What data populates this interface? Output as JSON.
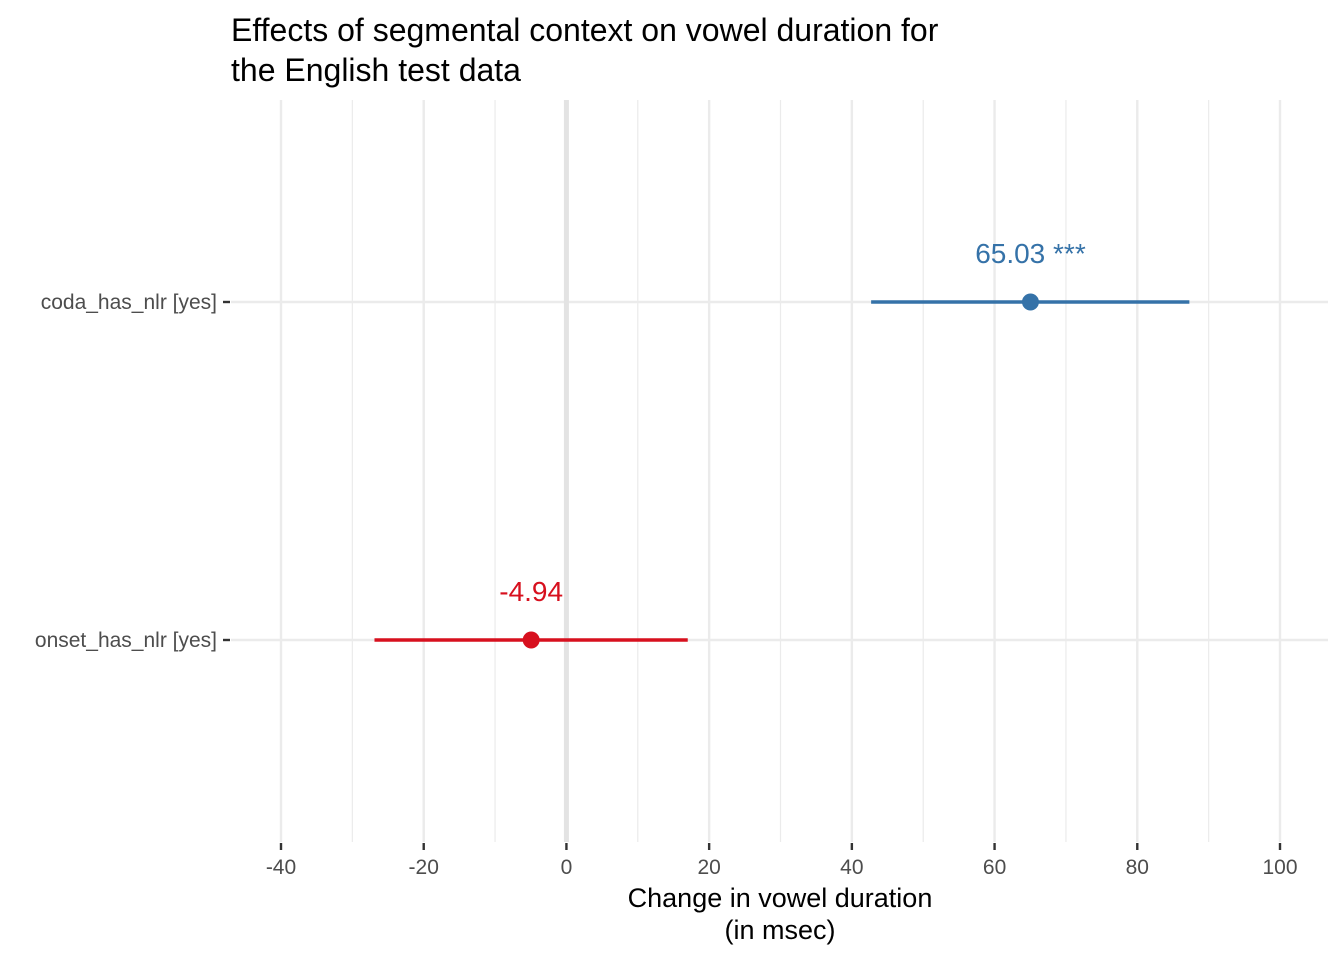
{
  "chart_data": {
    "type": "forest",
    "title_line1": "Effects of segmental context on vowel duration for",
    "title_line2": "the English test data",
    "xlabel_line1": "Change in vowel duration",
    "xlabel_line2": "(in msec)",
    "xlim": [
      -44,
      105
    ],
    "x_ticks": [
      -40,
      -20,
      0,
      20,
      40,
      60,
      80,
      100
    ],
    "x_tick_labels": [
      "-40",
      "-20",
      "0",
      "20",
      "40",
      "60",
      "80",
      "100"
    ],
    "x_minor_ticks": [
      -30,
      -10,
      10,
      30,
      50,
      70,
      90
    ],
    "reference_line": 0,
    "terms": [
      {
        "label": "coda_has_nlr [yes]",
        "estimate": 65.03,
        "ci_low": 42.7,
        "ci_high": 87.3,
        "annotation": "65.03 ***",
        "color": "#3572A8"
      },
      {
        "label": "onset_has_nlr [yes]",
        "estimate": -4.94,
        "ci_low": -26.9,
        "ci_high": 17.0,
        "annotation": "-4.94",
        "color": "#D7101E"
      }
    ]
  }
}
